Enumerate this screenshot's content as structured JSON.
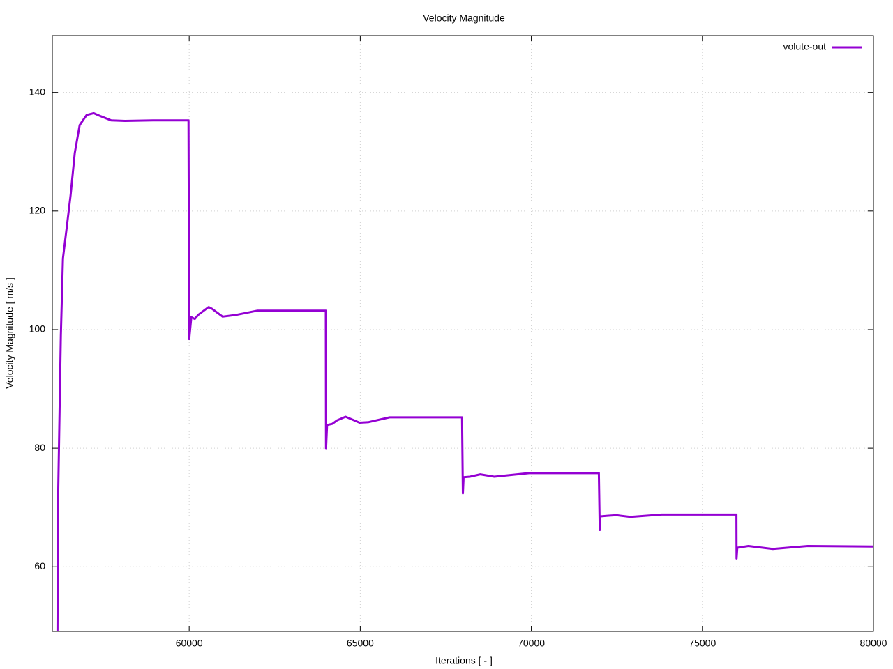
{
  "chart_data": {
    "type": "line",
    "title": "Velocity Magnitude",
    "x_label": "Iterations [ - ]",
    "y_label": "Velocity Magnitude [ m/s ]",
    "x": [
      56150,
      56167,
      56208,
      56249,
      56310,
      56412,
      56534,
      56656,
      56799,
      57003,
      57207,
      57411,
      57717,
      58124,
      58940,
      59980,
      60000,
      60061,
      60163,
      60265,
      60570,
      60672,
      60978,
      61386,
      61997,
      63994,
      64000,
      64030,
      64183,
      64326,
      64571,
      64734,
      64980,
      65245,
      65856,
      67976,
      68000,
      68020,
      68204,
      68509,
      68917,
      69936,
      71974,
      72000,
      72020,
      72224,
      72489,
      72897,
      73814,
      75995,
      76000,
      76020,
      76346,
      77060,
      78080,
      80000
    ],
    "series": [
      {
        "name": "volute-out",
        "color": "#9400d3",
        "values": [
          49.1,
          71,
          85,
          99,
          112,
          116.8,
          122.7,
          129.8,
          134.5,
          136.2,
          136.5,
          136,
          135.3,
          135.2,
          135.3,
          135.3,
          98.4,
          102.1,
          101.8,
          102.5,
          103.8,
          103.5,
          102.2,
          102.5,
          103.2,
          103.2,
          79.9,
          83.9,
          84.1,
          84.7,
          85.3,
          84.9,
          84.3,
          84.4,
          85.2,
          85.2,
          72.4,
          75.1,
          75.2,
          75.6,
          75.2,
          75.8,
          75.8,
          66.2,
          68.5,
          68.6,
          68.7,
          68.4,
          68.8,
          68.8,
          61.4,
          63.2,
          63.5,
          63.0,
          63.5,
          63.4
        ]
      }
    ],
    "xlim": [
      56000,
      80000
    ],
    "xticks": [
      60000,
      65000,
      70000,
      75000,
      80000
    ],
    "ylim": [
      49.1,
      149.6
    ],
    "yticks": [
      60,
      80,
      100,
      120,
      140
    ],
    "grid": true,
    "legend": "top-right"
  }
}
